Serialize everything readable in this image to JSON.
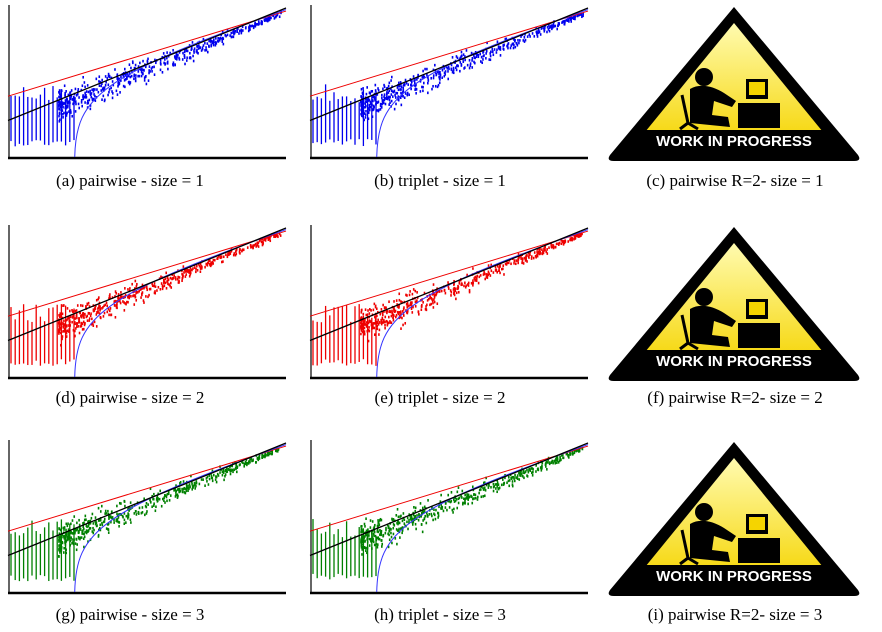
{
  "figure": {
    "panels": [
      {
        "caption": "(a) pairwise - size = 1"
      },
      {
        "caption": "(b) triplet - size = 1"
      },
      {
        "caption": "(c) pairwise R=2- size = 1",
        "sign": "WORK IN PROGRESS"
      },
      {
        "caption": "(d) pairwise - size = 2"
      },
      {
        "caption": "(e) triplet - size = 2"
      },
      {
        "caption": "(f) pairwise R=2- size = 2",
        "sign": "WORK IN PROGRESS"
      },
      {
        "caption": "(g) pairwise - size = 3"
      },
      {
        "caption": "(h) triplet - size = 3"
      },
      {
        "caption": "(i) pairwise R=2- size = 3",
        "sign": "WORK IN PROGRESS"
      }
    ]
  }
}
